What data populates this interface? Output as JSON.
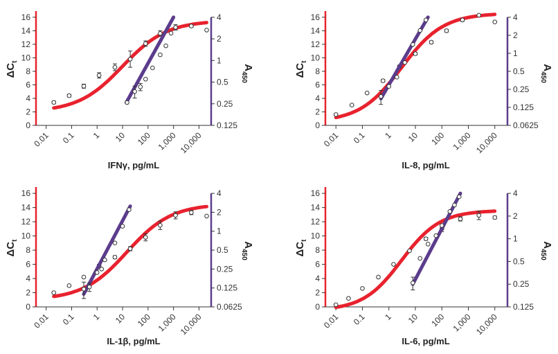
{
  "colors": {
    "fit_red": "#e8222e",
    "fit_purple": "#5b3c8c",
    "left_axis": "#e8222e",
    "right_axis": "#5b3c8c",
    "marker_fill": "#ffffff",
    "marker_stroke": "#333333"
  },
  "chart_data": [
    {
      "type": "scatter",
      "xlabel": "IFNγ, pg/mL",
      "ylabel_left": "ΔCt",
      "ylabel_right": "A450",
      "x_scale": "log",
      "x_ticks": [
        "0.01",
        "0.1",
        "1",
        "10",
        "100",
        "1,000",
        "10,000"
      ],
      "x_tick_values": [
        0.01,
        0.1,
        1,
        10,
        100,
        1000,
        10000
      ],
      "xlim": [
        0.004,
        30000
      ],
      "y_left_ticks": [
        "0",
        "2",
        "4",
        "6",
        "8",
        "10",
        "12",
        "14",
        "16"
      ],
      "ylim_left": [
        0,
        16.5
      ],
      "y_right_ticks": [
        "0.125",
        "0.25",
        "0.5",
        "1",
        "2",
        "4"
      ],
      "y_right_tick_values": [
        0.125,
        0.25,
        0.5,
        1,
        2,
        4
      ],
      "y_right_scale": "log2",
      "grid": false,
      "series": [
        {
          "axis": "left",
          "fit": "sigmoid",
          "bottom": 2.0,
          "top": 15.5,
          "ec50": 10,
          "slope": 0.5,
          "fit_range": [
            0.02,
            20000
          ],
          "points": [
            [
              0.02,
              3.4
            ],
            [
              0.08,
              4.4
            ],
            [
              0.3,
              5.8
            ],
            [
              1.2,
              7.4
            ],
            [
              5,
              8.6
            ],
            [
              20,
              9.8
            ],
            [
              80,
              12.1
            ],
            [
              300,
              13.6
            ],
            [
              1200,
              14.5
            ],
            [
              5000,
              14.7
            ],
            [
              20000,
              14.1
            ]
          ],
          "errors": [
            0.2,
            0.2,
            0.3,
            0.4,
            0.5,
            1.2,
            0.4,
            0.4,
            0.4,
            0.2,
            0.1
          ]
        },
        {
          "axis": "right",
          "fit": "loglinear",
          "fit_points": [
            [
              14,
              0.26
            ],
            [
              1000,
              4
            ]
          ],
          "points": [
            [
              15,
              0.26
            ],
            [
              30,
              0.37
            ],
            [
              50,
              0.43
            ],
            [
              80,
              0.55
            ],
            [
              150,
              0.79
            ],
            [
              300,
              1.2
            ],
            [
              500,
              1.6
            ],
            [
              800,
              2.4
            ]
          ],
          "errors": [
            0.0,
            0.07,
            0.05,
            0.0,
            0.0,
            0.0,
            0.0,
            0.0
          ]
        }
      ]
    },
    {
      "type": "scatter",
      "xlabel": "IL-8, pg/mL",
      "ylabel_left": "ΔCt",
      "ylabel_right": "A450",
      "x_scale": "log",
      "x_ticks": [
        "0.01",
        "0.1",
        "1",
        "10",
        "100",
        "1,000",
        "10,000"
      ],
      "x_tick_values": [
        0.01,
        0.1,
        1,
        10,
        100,
        1000,
        10000
      ],
      "xlim": [
        0.004,
        30000
      ],
      "y_left_ticks": [
        "0",
        "2",
        "4",
        "6",
        "8",
        "10",
        "12",
        "14",
        "16"
      ],
      "ylim_left": [
        0,
        16.5
      ],
      "y_right_ticks": [
        "0.0625",
        "0.125",
        "0.25",
        "0.5",
        "1",
        "2",
        "4"
      ],
      "y_right_tick_values": [
        0.0625,
        0.125,
        0.25,
        0.5,
        1,
        2,
        4
      ],
      "y_right_scale": "log2",
      "grid": false,
      "series": [
        {
          "axis": "left",
          "fit": "sigmoid",
          "bottom": 0.5,
          "top": 16.6,
          "ec50": 3,
          "slope": 0.55,
          "fit_range": [
            0.01,
            10000
          ],
          "points": [
            [
              0.01,
              1.6
            ],
            [
              0.04,
              3.0
            ],
            [
              0.15,
              4.8
            ],
            [
              0.6,
              6.6
            ],
            [
              2.5,
              8.7
            ],
            [
              10,
              10.6
            ],
            [
              40,
              12.3
            ],
            [
              150,
              14.0
            ],
            [
              600,
              15.6
            ],
            [
              2500,
              16.3
            ],
            [
              10000,
              15.3
            ]
          ],
          "errors": [
            0.1,
            0.1,
            0.1,
            0.2,
            0.2,
            0.2,
            0.2,
            0.2,
            0.2,
            0.1,
            0.1
          ]
        },
        {
          "axis": "right",
          "fit": "loglinear",
          "fit_points": [
            [
              0.5,
              0.175
            ],
            [
              30,
              4
            ]
          ],
          "points": [
            [
              0.5,
              0.19
            ],
            [
              1,
              0.28
            ],
            [
              2,
              0.4
            ],
            [
              4,
              0.7
            ],
            [
              8,
              1.4
            ],
            [
              15,
              2.4
            ],
            [
              25,
              3.6
            ]
          ],
          "errors": [
            0.05,
            0.0,
            0.0,
            0.0,
            0.0,
            0.0,
            0.0
          ]
        }
      ]
    },
    {
      "type": "scatter",
      "xlabel": "IL-1β, pg/mL",
      "ylabel_left": "ΔCt",
      "ylabel_right": "A450",
      "x_scale": "log",
      "x_ticks": [
        "0.01",
        "0.1",
        "1",
        "10",
        "100",
        "1,000",
        "10,000"
      ],
      "x_tick_values": [
        0.01,
        0.1,
        1,
        10,
        100,
        1000,
        10000
      ],
      "xlim": [
        0.004,
        30000
      ],
      "y_left_ticks": [
        "0",
        "2",
        "4",
        "6",
        "8",
        "10",
        "12",
        "14",
        "16"
      ],
      "ylim_left": [
        0,
        16.5
      ],
      "y_right_ticks": [
        "0.0625",
        "0.125",
        "0.25",
        "0.5",
        "1",
        "2",
        "4"
      ],
      "y_right_tick_values": [
        0.0625,
        0.125,
        0.25,
        0.5,
        1,
        2,
        4
      ],
      "y_right_scale": "log2",
      "grid": false,
      "series": [
        {
          "axis": "left",
          "fit": "sigmoid",
          "bottom": 1.0,
          "top": 14.5,
          "ec50": 15,
          "slope": 0.5,
          "fit_range": [
            0.02,
            20000
          ],
          "points": [
            [
              0.02,
              2.0
            ],
            [
              0.08,
              3.0
            ],
            [
              0.3,
              4.2
            ],
            [
              1.2,
              5.8
            ],
            [
              5,
              7.0
            ],
            [
              20,
              8.2
            ],
            [
              80,
              9.8
            ],
            [
              300,
              11.5
            ],
            [
              1200,
              12.9
            ],
            [
              5000,
              13.3
            ],
            [
              20000,
              12.8
            ]
          ],
          "errors": [
            0.1,
            0.1,
            0.1,
            0.2,
            0.2,
            0.3,
            0.5,
            0.6,
            0.5,
            0.3,
            0.1
          ]
        },
        {
          "axis": "right",
          "fit": "loglinear",
          "fit_points": [
            [
              0.3,
              0.1
            ],
            [
              20,
              2.5
            ]
          ],
          "points": [
            [
              0.3,
              0.12
            ],
            [
              0.5,
              0.13
            ],
            [
              1,
              0.22
            ],
            [
              1.5,
              0.25
            ],
            [
              2,
              0.35
            ],
            [
              5,
              0.65
            ],
            [
              10,
              1.2
            ],
            [
              18,
              2.2
            ]
          ],
          "errors": [
            0.035,
            0.02,
            0.0,
            0.0,
            0.0,
            0.0,
            0.0,
            0.0
          ]
        }
      ]
    },
    {
      "type": "scatter",
      "xlabel": "IL-6, pg/mL",
      "ylabel_left": "ΔCt",
      "ylabel_right": "A450",
      "x_scale": "log",
      "x_ticks": [
        "0.01",
        "0.1",
        "1",
        "10",
        "100",
        "1,000",
        "10,000"
      ],
      "x_tick_values": [
        0.01,
        0.1,
        1,
        10,
        100,
        1000,
        10000
      ],
      "xlim": [
        0.004,
        30000
      ],
      "y_left_ticks": [
        "0",
        "2",
        "4",
        "6",
        "8",
        "10",
        "12",
        "14",
        "16"
      ],
      "ylim_left": [
        0,
        16.5
      ],
      "y_right_ticks": [
        "0.125",
        "0.25",
        "0.5",
        "1",
        "2",
        "4"
      ],
      "y_right_tick_values": [
        0.125,
        0.25,
        0.5,
        1,
        2,
        4
      ],
      "y_right_scale": "log2",
      "grid": false,
      "series": [
        {
          "axis": "left",
          "fit": "sigmoid",
          "bottom": -0.5,
          "top": 13.6,
          "ec50": 3,
          "slope": 0.6,
          "fit_range": [
            0.01,
            10000
          ],
          "points": [
            [
              0.01,
              0.3
            ],
            [
              0.03,
              1.2
            ],
            [
              0.1,
              2.6
            ],
            [
              0.4,
              4.2
            ],
            [
              1.5,
              6.0
            ],
            [
              6,
              7.9
            ],
            [
              25,
              9.6
            ],
            [
              100,
              11.0
            ],
            [
              500,
              12.4
            ],
            [
              2500,
              12.9
            ],
            [
              10000,
              12.6
            ]
          ],
          "errors": [
            0.1,
            0.1,
            0.1,
            0.1,
            0.1,
            0.1,
            0.2,
            0.4,
            0.3,
            0.6,
            0.2
          ]
        },
        {
          "axis": "right",
          "fit": "loglinear",
          "fit_points": [
            [
              8,
              0.25
            ],
            [
              500,
              4
            ]
          ],
          "points": [
            [
              8,
              0.26
            ],
            [
              15,
              0.55
            ],
            [
              30,
              0.85
            ],
            [
              60,
              1.1
            ],
            [
              100,
              1.5
            ],
            [
              200,
              2.3
            ],
            [
              300,
              2.8
            ],
            [
              450,
              3.6
            ]
          ],
          "errors": [
            0.05,
            0.0,
            0.0,
            0.0,
            0.0,
            0.0,
            0.0,
            0.0
          ]
        }
      ]
    }
  ]
}
